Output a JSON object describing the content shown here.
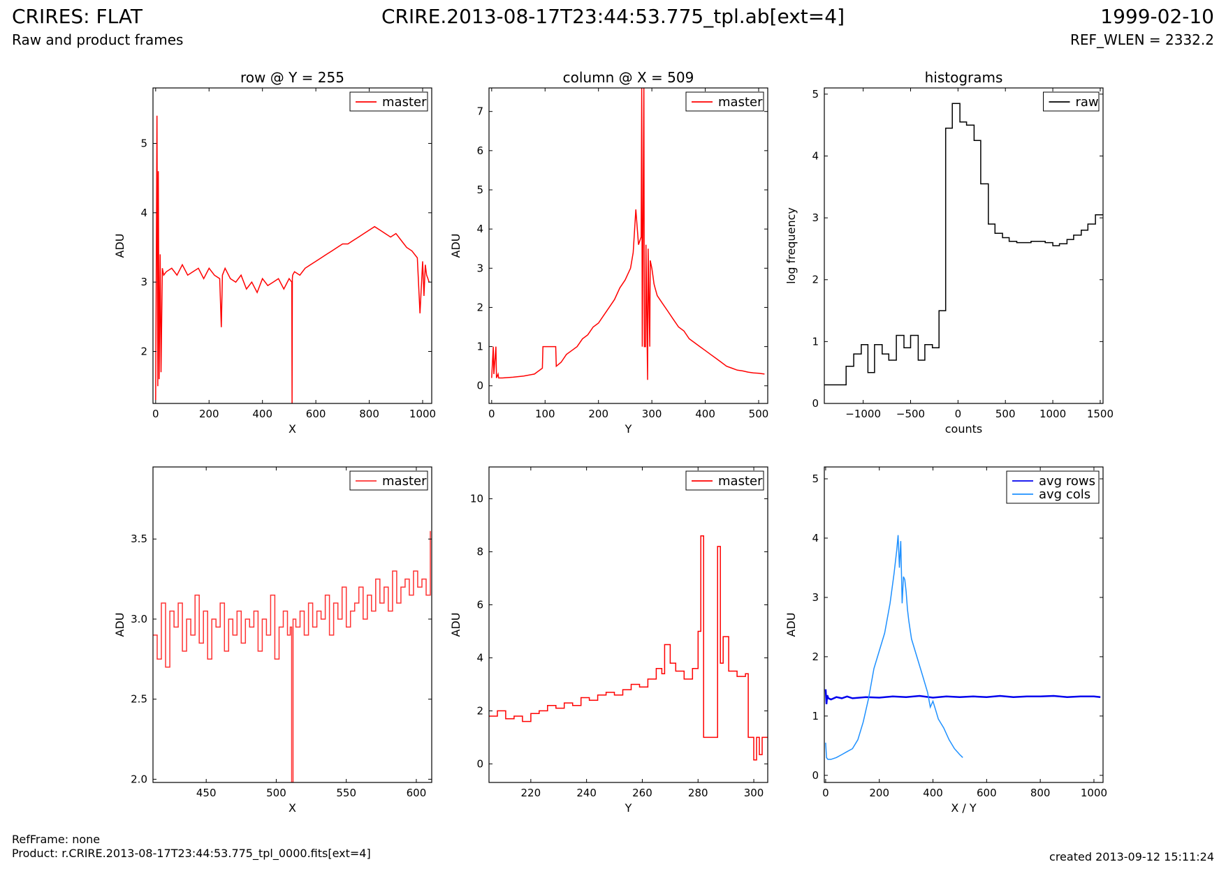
{
  "header": {
    "left_title": "CRIRES: FLAT",
    "left_subtitle": "Raw and product frames",
    "center_title": "CRIRE.2013-08-17T23:44:53.775_tpl.ab[ext=4]",
    "right_title": "1999-02-10",
    "right_subtitle": "REF_WLEN = 2332.2"
  },
  "footer": {
    "refframe": "RefFrame: none",
    "product": "Product: r.CRIRE.2013-08-17T23:44:53.775_tpl_0000.fits[ext=4]",
    "created": "created 2013-09-12 15:11:24"
  },
  "colors": {
    "master": "#ff0000",
    "master_zoom": "#ff3333",
    "raw": "#000000",
    "avg_rows": "#0000ee",
    "avg_cols": "#1e90ff"
  },
  "chart_data": [
    {
      "type": "line",
      "title": "row @ Y = 255",
      "xlabel": "X",
      "ylabel": "ADU",
      "xlim": [
        -10,
        1034
      ],
      "ylim": [
        1.25,
        5.8
      ],
      "xticks": [
        0,
        200,
        400,
        600,
        800,
        1000
      ],
      "yticks": [
        2,
        3,
        4,
        5
      ],
      "legend": "top-right",
      "series": [
        {
          "name": "master",
          "x": [
            0,
            5,
            8,
            10,
            13,
            17,
            20,
            25,
            30,
            40,
            60,
            80,
            100,
            120,
            140,
            160,
            180,
            200,
            220,
            240,
            246,
            250,
            260,
            280,
            300,
            320,
            340,
            360,
            380,
            400,
            420,
            440,
            460,
            480,
            500,
            510,
            511,
            512,
            513,
            520,
            540,
            560,
            580,
            600,
            620,
            640,
            660,
            680,
            700,
            720,
            740,
            760,
            780,
            800,
            820,
            840,
            860,
            880,
            900,
            920,
            940,
            960,
            980,
            990,
            1000,
            1005,
            1010,
            1015,
            1020,
            1024
          ],
          "y": [
            1.3,
            5.4,
            1.5,
            4.6,
            1.6,
            3.4,
            1.7,
            3.2,
            3.1,
            3.15,
            3.2,
            3.1,
            3.25,
            3.1,
            3.15,
            3.2,
            3.05,
            3.2,
            3.1,
            3.05,
            2.35,
            3.1,
            3.2,
            3.05,
            3.0,
            3.1,
            2.9,
            3.0,
            2.85,
            3.05,
            2.95,
            3.0,
            3.05,
            2.9,
            3.05,
            3.0,
            1.25,
            3.05,
            3.1,
            3.15,
            3.1,
            3.2,
            3.25,
            3.3,
            3.35,
            3.4,
            3.45,
            3.5,
            3.55,
            3.55,
            3.6,
            3.65,
            3.7,
            3.75,
            3.8,
            3.75,
            3.7,
            3.65,
            3.7,
            3.6,
            3.5,
            3.45,
            3.35,
            2.55,
            3.3,
            2.8,
            3.25,
            3.1,
            3.05,
            3.0
          ]
        }
      ]
    },
    {
      "type": "line",
      "title": "column @ X = 509",
      "xlabel": "Y",
      "ylabel": "ADU",
      "xlim": [
        -5,
        517
      ],
      "ylim": [
        -0.45,
        7.6
      ],
      "xticks": [
        0,
        100,
        200,
        300,
        400,
        500
      ],
      "yticks": [
        0,
        1,
        2,
        3,
        4,
        5,
        6,
        7
      ],
      "legend": "top-right",
      "series": [
        {
          "name": "master",
          "x": [
            0,
            3,
            4,
            8,
            9,
            12,
            13,
            20,
            40,
            60,
            80,
            95,
            96,
            100,
            110,
            120,
            121,
            130,
            140,
            150,
            160,
            170,
            180,
            190,
            200,
            210,
            220,
            230,
            240,
            250,
            260,
            265,
            270,
            275,
            280,
            281,
            282,
            285,
            286,
            288,
            289,
            292,
            293,
            296,
            297,
            300,
            302,
            304,
            306,
            310,
            320,
            330,
            340,
            350,
            360,
            370,
            380,
            390,
            400,
            410,
            420,
            430,
            440,
            450,
            460,
            470,
            480,
            490,
            500,
            511
          ],
          "y": [
            0.2,
            1.0,
            0.3,
            1.0,
            0.2,
            0.3,
            0.2,
            0.2,
            0.22,
            0.25,
            0.3,
            0.45,
            1.0,
            1.0,
            1.0,
            1.0,
            0.5,
            0.6,
            0.8,
            0.9,
            1.0,
            1.2,
            1.3,
            1.5,
            1.6,
            1.8,
            2.0,
            2.2,
            2.5,
            2.7,
            3.0,
            3.4,
            4.5,
            3.6,
            3.8,
            7.6,
            1.0,
            7.6,
            1.0,
            1.0,
            3.6,
            0.15,
            3.5,
            1.0,
            3.2,
            3.0,
            2.8,
            2.6,
            2.5,
            2.3,
            2.1,
            1.9,
            1.7,
            1.5,
            1.4,
            1.2,
            1.1,
            1.0,
            0.9,
            0.8,
            0.7,
            0.6,
            0.5,
            0.45,
            0.4,
            0.38,
            0.35,
            0.33,
            0.32,
            0.3
          ]
        }
      ]
    },
    {
      "type": "line",
      "title": "histograms",
      "xlabel": "counts",
      "ylabel": "log frequency",
      "xlim": [
        -1410,
        1530
      ],
      "ylim": [
        0,
        5.1
      ],
      "xticks": [
        -1000,
        -500,
        0,
        500,
        1000,
        1500
      ],
      "xtick_labels": [
        "−1000",
        "−500",
        "0",
        "500",
        "1000",
        "1500"
      ],
      "yticks": [
        0,
        1,
        2,
        3,
        4,
        5
      ],
      "legend": "top-right",
      "series": [
        {
          "name": "raw",
          "step": true,
          "x": [
            -1410,
            -1180,
            -1100,
            -1020,
            -950,
            -880,
            -800,
            -730,
            -650,
            -570,
            -500,
            -420,
            -350,
            -270,
            -200,
            -130,
            -60,
            20,
            90,
            170,
            240,
            320,
            390,
            470,
            540,
            620,
            700,
            770,
            850,
            920,
            1000,
            1070,
            1150,
            1220,
            1300,
            1370,
            1450,
            1530
          ],
          "y": [
            0.3,
            0.6,
            0.8,
            0.95,
            0.5,
            0.95,
            0.8,
            0.7,
            1.1,
            0.9,
            1.1,
            0.7,
            0.95,
            0.9,
            1.5,
            4.45,
            4.85,
            4.55,
            4.5,
            4.25,
            3.55,
            2.9,
            2.75,
            2.68,
            2.62,
            2.6,
            2.6,
            2.62,
            2.62,
            2.6,
            2.55,
            2.58,
            2.65,
            2.72,
            2.8,
            2.9,
            3.05,
            3.05
          ]
        }
      ]
    },
    {
      "type": "line",
      "title": "",
      "xlabel": "X",
      "ylabel": "ADU",
      "xlim": [
        412,
        611
      ],
      "ylim": [
        1.98,
        3.95
      ],
      "xticks": [
        450,
        500,
        550,
        600
      ],
      "yticks": [
        2.0,
        2.5,
        3.0,
        3.5
      ],
      "ytick_labels": [
        "2.0",
        "2.5",
        "3.0",
        "3.5"
      ],
      "legend": "top-right",
      "series": [
        {
          "name": "master",
          "step": true,
          "x": [
            412,
            415,
            418,
            421,
            424,
            427,
            430,
            433,
            436,
            439,
            442,
            445,
            448,
            451,
            454,
            457,
            460,
            463,
            466,
            469,
            472,
            475,
            478,
            481,
            484,
            487,
            490,
            493,
            496,
            499,
            502,
            505,
            508,
            510,
            511,
            512,
            514,
            517,
            520,
            523,
            526,
            529,
            532,
            535,
            538,
            541,
            544,
            547,
            550,
            553,
            556,
            559,
            562,
            565,
            568,
            571,
            574,
            577,
            580,
            583,
            586,
            589,
            592,
            595,
            598,
            601,
            604,
            607,
            610
          ],
          "y": [
            2.9,
            2.75,
            3.1,
            2.7,
            3.05,
            2.95,
            3.1,
            2.8,
            3.0,
            2.9,
            3.15,
            2.85,
            3.05,
            2.75,
            3.0,
            2.95,
            3.1,
            2.8,
            3.0,
            2.9,
            3.05,
            2.85,
            3.0,
            2.95,
            3.05,
            2.8,
            3.0,
            2.9,
            3.15,
            2.75,
            2.95,
            3.05,
            2.9,
            2.95,
            1.98,
            3.0,
            2.95,
            3.05,
            2.9,
            3.1,
            2.95,
            3.05,
            3.0,
            3.15,
            2.9,
            3.1,
            3.0,
            3.2,
            2.95,
            3.05,
            3.1,
            3.2,
            3.0,
            3.15,
            3.05,
            3.25,
            3.1,
            3.2,
            3.05,
            3.3,
            3.1,
            3.2,
            3.25,
            3.15,
            3.3,
            3.2,
            3.25,
            3.15,
            3.55
          ]
        }
      ]
    },
    {
      "type": "line",
      "title": "",
      "xlabel": "Y",
      "ylabel": "ADU",
      "xlim": [
        205,
        305
      ],
      "ylim": [
        -0.7,
        11.2
      ],
      "xticks": [
        220,
        240,
        260,
        280,
        300
      ],
      "yticks": [
        0,
        2,
        4,
        6,
        8,
        10
      ],
      "legend": "top-right",
      "series": [
        {
          "name": "master",
          "step": true,
          "x": [
            205,
            208,
            211,
            214,
            217,
            220,
            223,
            226,
            229,
            232,
            235,
            238,
            241,
            244,
            247,
            250,
            253,
            256,
            259,
            262,
            265,
            267,
            268,
            270,
            272,
            275,
            278,
            280,
            281,
            282,
            286,
            287,
            288,
            289,
            291,
            294,
            297,
            298,
            300,
            301,
            302,
            303,
            305
          ],
          "y": [
            1.8,
            2.0,
            1.7,
            1.8,
            1.6,
            1.9,
            2.0,
            2.2,
            2.1,
            2.3,
            2.2,
            2.5,
            2.4,
            2.6,
            2.7,
            2.6,
            2.8,
            3.0,
            2.9,
            3.2,
            3.6,
            3.4,
            4.5,
            3.8,
            3.5,
            3.2,
            3.6,
            5.0,
            8.6,
            1.0,
            1.0,
            8.2,
            3.8,
            4.8,
            3.5,
            3.3,
            3.4,
            1.0,
            0.15,
            1.0,
            0.35,
            1.0,
            1.0
          ]
        }
      ]
    },
    {
      "type": "line",
      "title": "",
      "xlabel": "X / Y",
      "ylabel": "ADU",
      "xlim": [
        -5,
        1034
      ],
      "ylim": [
        -0.12,
        5.2
      ],
      "xticks": [
        0,
        200,
        400,
        600,
        800,
        1000
      ],
      "yticks": [
        0,
        1,
        2,
        3,
        4,
        5
      ],
      "legend": "top-right",
      "series": [
        {
          "name": "avg rows",
          "color_key": "avg_rows",
          "x": [
            0,
            3,
            6,
            10,
            20,
            40,
            60,
            80,
            100,
            150,
            200,
            250,
            300,
            350,
            400,
            450,
            500,
            550,
            600,
            650,
            700,
            750,
            800,
            850,
            900,
            950,
            1000,
            1024
          ],
          "y": [
            1.45,
            1.2,
            1.35,
            1.3,
            1.28,
            1.32,
            1.3,
            1.33,
            1.3,
            1.32,
            1.31,
            1.33,
            1.32,
            1.34,
            1.31,
            1.33,
            1.32,
            1.33,
            1.32,
            1.34,
            1.32,
            1.33,
            1.33,
            1.34,
            1.32,
            1.33,
            1.33,
            1.32
          ]
        },
        {
          "name": "avg cols",
          "color_key": "avg_cols",
          "x": [
            0,
            3,
            8,
            20,
            40,
            60,
            80,
            100,
            120,
            140,
            160,
            180,
            200,
            220,
            240,
            255,
            265,
            270,
            275,
            280,
            285,
            290,
            295,
            300,
            305,
            310,
            320,
            340,
            360,
            380,
            390,
            400,
            410,
            420,
            440,
            460,
            480,
            500,
            511
          ],
          "y": [
            0.55,
            0.3,
            0.27,
            0.27,
            0.3,
            0.35,
            0.4,
            0.45,
            0.6,
            0.9,
            1.3,
            1.8,
            2.1,
            2.4,
            2.9,
            3.4,
            3.8,
            4.05,
            3.5,
            3.95,
            2.9,
            3.35,
            3.3,
            3.1,
            2.8,
            2.6,
            2.3,
            2.0,
            1.7,
            1.4,
            1.15,
            1.25,
            1.1,
            0.95,
            0.8,
            0.6,
            0.45,
            0.35,
            0.3
          ]
        }
      ]
    }
  ]
}
